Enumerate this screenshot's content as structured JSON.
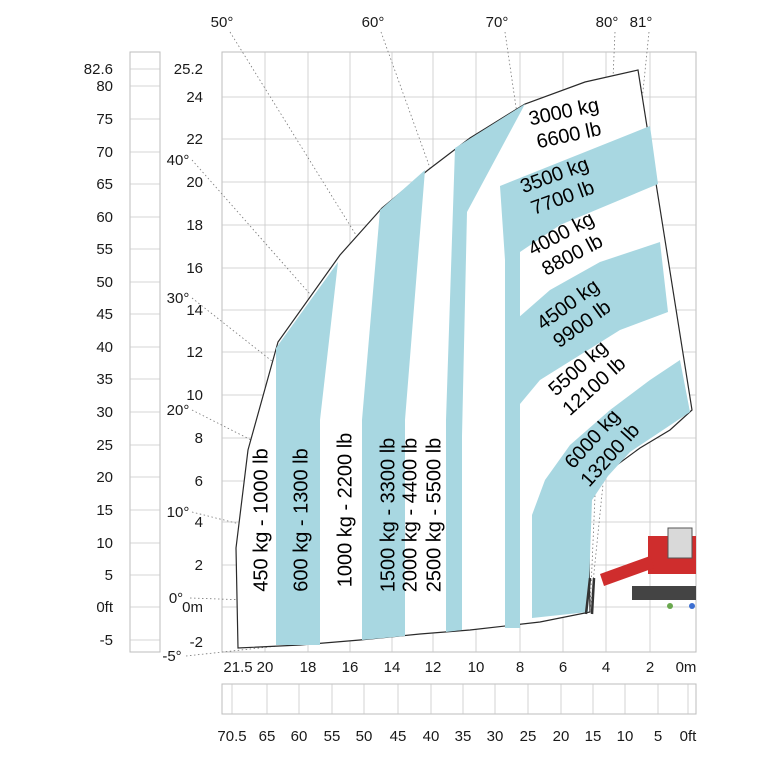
{
  "chart_data": {
    "type": "area",
    "title": "",
    "xlabel": "",
    "ylabel": "",
    "colors": {
      "zone": "#a8d7e1",
      "grid": "#c8c8c8",
      "outline": "#2a2a2a",
      "guide": "#777777",
      "machine": "#cf2d2d"
    },
    "xlim_m": [
      0,
      21.5
    ],
    "ylim_m": [
      -2,
      25.2
    ],
    "x_ticks_m": [
      "21.5",
      "20",
      "18",
      "16",
      "14",
      "12",
      "10",
      "8",
      "6",
      "4",
      "2",
      "0m"
    ],
    "x_ticks_ft": [
      "70.5",
      "65",
      "60",
      "55",
      "50",
      "45",
      "40",
      "35",
      "30",
      "25",
      "20",
      "15",
      "10",
      "5",
      "0ft"
    ],
    "y_ticks_m": [
      "25.2",
      "24",
      "22",
      "20",
      "18",
      "16",
      "14",
      "12",
      "10",
      "8",
      "6",
      "4",
      "2",
      "0m",
      "-2"
    ],
    "y_ticks_ft": [
      "82.6",
      "80",
      "75",
      "70",
      "65",
      "60",
      "55",
      "50",
      "45",
      "40",
      "35",
      "30",
      "25",
      "20",
      "15",
      "10",
      "5",
      "0ft",
      "-5"
    ],
    "boom_angles": [
      "50°",
      "60°",
      "70°",
      "80°",
      "81°",
      "40°",
      "30°",
      "20°",
      "10°",
      "0°",
      "-5°"
    ],
    "vertical_zones": [
      {
        "label": "450 kg - 1000 lb",
        "x_from_m": 21.5,
        "x_to_m": 19.5,
        "shaded": false
      },
      {
        "label": "600 kg - 1300 lb",
        "x_from_m": 19.5,
        "x_to_m": 17.5,
        "shaded": true
      },
      {
        "label": "1000 kg - 2200 lb",
        "x_from_m": 17.5,
        "x_to_m": 15.5,
        "shaded": false
      },
      {
        "label": "1500 kg - 3300 lb",
        "x_from_m": 15.5,
        "x_to_m": 13.5,
        "shaded": true
      },
      {
        "label": "2000 kg - 4400 lb",
        "x_from_m": 13.5,
        "x_to_m": 12.5,
        "shaded": false
      },
      {
        "label": "2500 kg - 5500 lb",
        "x_from_m": 12.5,
        "x_to_m": 11.0,
        "shaded": true
      }
    ],
    "band_zones": [
      {
        "line1": "3000 kg",
        "line2": "6600 lb",
        "shaded": false
      },
      {
        "line1": "3500 kg",
        "line2": "7700 lb",
        "shaded": true
      },
      {
        "line1": "4000 kg",
        "line2": "8800 lb",
        "shaded": false
      },
      {
        "line1": "4500 kg",
        "line2": "9900 lb",
        "shaded": true
      },
      {
        "line1": "5500 kg",
        "line2": "12100 lb",
        "shaded": false
      },
      {
        "line1": "6000 kg",
        "line2": "13200 lb",
        "shaded": true
      }
    ],
    "max_lift_height_m": 25.2,
    "max_outreach_m": 21.5
  }
}
